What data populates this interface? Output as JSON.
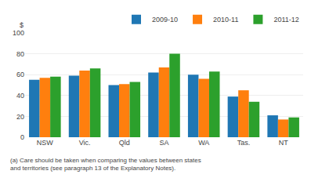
{
  "chart_data": {
    "type": "bar",
    "categories": [
      "NSW",
      "Vic.",
      "Qld",
      "SA",
      "WA",
      "Tas.",
      "NT"
    ],
    "series": [
      {
        "name": "2009-10",
        "values": [
          55,
          59,
          50,
          62,
          60,
          39,
          21
        ]
      },
      {
        "name": "2010-11",
        "values": [
          57,
          64,
          51,
          67,
          56,
          45,
          17
        ]
      },
      {
        "name": "2011-12",
        "values": [
          58,
          66,
          53,
          80,
          63,
          34,
          19
        ]
      }
    ],
    "ylim": [
      0,
      100
    ],
    "yticks": [
      0,
      20,
      40,
      60,
      80,
      100
    ],
    "ylabel": "$",
    "annotations": [
      "(a) Care should be taken when comparing the values between states\nand territories (see paragraph 13 of the Explanatory Notes)."
    ],
    "legend": "upper right",
    "grid": true
  }
}
